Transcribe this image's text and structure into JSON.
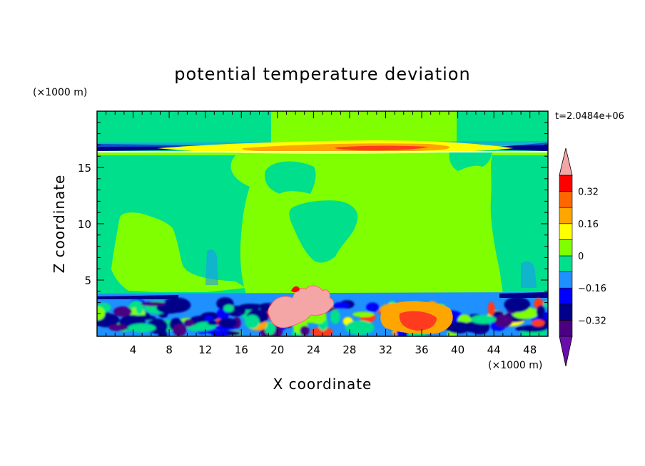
{
  "chart_data": {
    "type": "heatmap",
    "title": "potential temperature deviation",
    "xlabel": "X coordinate",
    "ylabel": "Z coordinate",
    "x_unit": "(×1000 m)",
    "y_unit": "(×1000 m)",
    "time_label": "t=2.0484e+06",
    "xlim": [
      0,
      50
    ],
    "ylim": [
      0,
      20
    ],
    "x_ticks": [
      4,
      8,
      12,
      16,
      20,
      24,
      28,
      32,
      36,
      40,
      44,
      48
    ],
    "y_ticks": [
      5,
      10,
      15
    ],
    "colorbar": {
      "levels": [
        -0.4,
        -0.32,
        -0.24,
        -0.16,
        -0.08,
        0,
        0.08,
        0.16,
        0.24,
        0.32,
        0.4
      ],
      "tick_labels": [
        "0.32",
        "0.16",
        "0",
        "−0.16",
        "−0.32"
      ],
      "tick_values": [
        0.32,
        0.16,
        0,
        -0.16,
        -0.32
      ],
      "colors": [
        "#6a0dad",
        "#4b0082",
        "#00008b",
        "#0000ff",
        "#1e90ff",
        "#00e08c",
        "#7fff00",
        "#ffff00",
        "#ffa500",
        "#ff6600",
        "#ff0000",
        "#f4a6a6"
      ],
      "extend": "both"
    },
    "background_value": -0.04,
    "features": [
      {
        "name": "upper warm layer",
        "x": [
          7,
          47
        ],
        "z": [
          16.6,
          17.0
        ],
        "value": 0.3
      },
      {
        "name": "upper cold layer west",
        "x": [
          0,
          10
        ],
        "z": [
          16.7,
          17.1
        ],
        "value": -0.3
      },
      {
        "name": "upper cold layer east",
        "x": [
          44,
          50
        ],
        "z": [
          16.7,
          17.1
        ],
        "value": -0.3
      },
      {
        "name": "mid-level neutral plume west",
        "x": [
          2.5,
          9
        ],
        "z": [
          4,
          10.5
        ],
        "value": 0.02
      },
      {
        "name": "mid-level neutral plume central",
        "x": [
          16,
          44
        ],
        "z": [
          4,
          16
        ],
        "value": 0.02
      },
      {
        "name": "upper neutral band",
        "x": [
          19,
          40
        ],
        "z": [
          17,
          20
        ],
        "value": 0.02
      },
      {
        "name": "warm thermal",
        "x": [
          18.5,
          26.5
        ],
        "z": [
          0.8,
          4.2
        ],
        "value": 0.45
      },
      {
        "name": "boundary layer cold west",
        "x": [
          0,
          10
        ],
        "z": [
          0,
          3.5
        ],
        "value": -0.3
      },
      {
        "name": "boundary layer warm east",
        "x": [
          28,
          40
        ],
        "z": [
          0,
          3.2
        ],
        "value": 0.35
      }
    ]
  }
}
